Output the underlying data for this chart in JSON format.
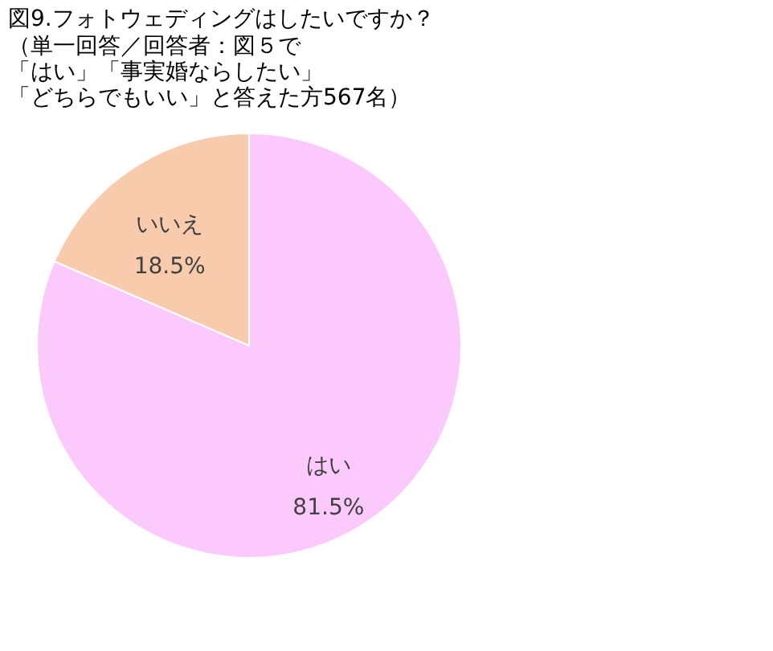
{
  "chart_data": {
    "type": "pie",
    "title": "図9.フォトウェディングはしたいですか？",
    "annotations": [
      "（単一回答／回答者：図５で",
      "「はい」「事実婚ならしたい」",
      "「どちらでもいい」と答えた方567名）"
    ],
    "categories": [
      "はい",
      "いいえ"
    ],
    "values": [
      81.5,
      18.5
    ],
    "colors": [
      "#fbc9fb",
      "#f8cbad"
    ],
    "value_labels": [
      "81.5%",
      "18.5%"
    ],
    "legend": false
  }
}
